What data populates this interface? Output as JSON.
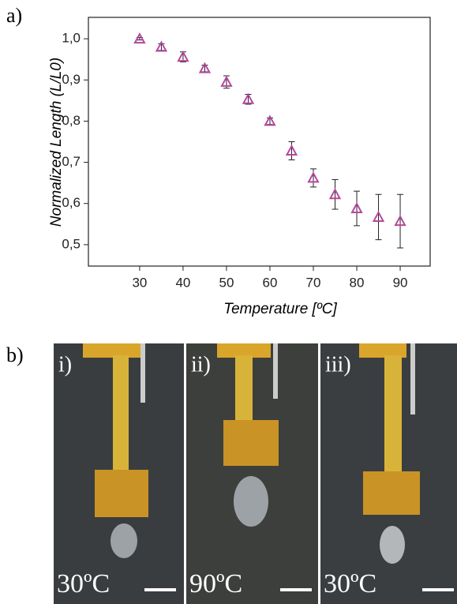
{
  "chart_data": {
    "type": "scatter",
    "x_label": "Temperature [ºC]",
    "y_label": "Normalized Length (L/L0)",
    "xlim": [
      18.2,
      96.9
    ],
    "xticks": [
      30,
      40,
      50,
      60,
      70,
      80,
      90
    ],
    "ylim": [
      0.448,
      1.052
    ],
    "yticks": [
      {
        "value": 0.5,
        "label": "0,5"
      },
      {
        "value": 0.6,
        "label": "0,6"
      },
      {
        "value": 0.7,
        "label": "0,7"
      },
      {
        "value": 0.8,
        "label": "0,8"
      },
      {
        "value": 0.9,
        "label": "0,9"
      },
      {
        "value": 1.0,
        "label": "1,0"
      }
    ],
    "series": [
      {
        "color": "#b5489e",
        "x": [
          30,
          35,
          40,
          45,
          50,
          55,
          60,
          65,
          70,
          75,
          80,
          85,
          90
        ],
        "values": [
          1.0,
          0.98,
          0.956,
          0.928,
          0.895,
          0.853,
          0.8,
          0.728,
          0.662,
          0.622,
          0.588,
          0.567,
          0.557
        ],
        "errors": [
          0.003,
          0.008,
          0.012,
          0.008,
          0.015,
          0.012,
          0.008,
          0.022,
          0.022,
          0.036,
          0.042,
          0.055,
          0.065
        ]
      }
    ]
  },
  "panel_labels": [
    "a)",
    "b)"
  ],
  "photos": [
    {
      "label": "i)",
      "temperature": "30ºC"
    },
    {
      "label": "ii)",
      "temperature": "90ºC"
    },
    {
      "label": "iii)",
      "temperature": "30ºC"
    }
  ]
}
